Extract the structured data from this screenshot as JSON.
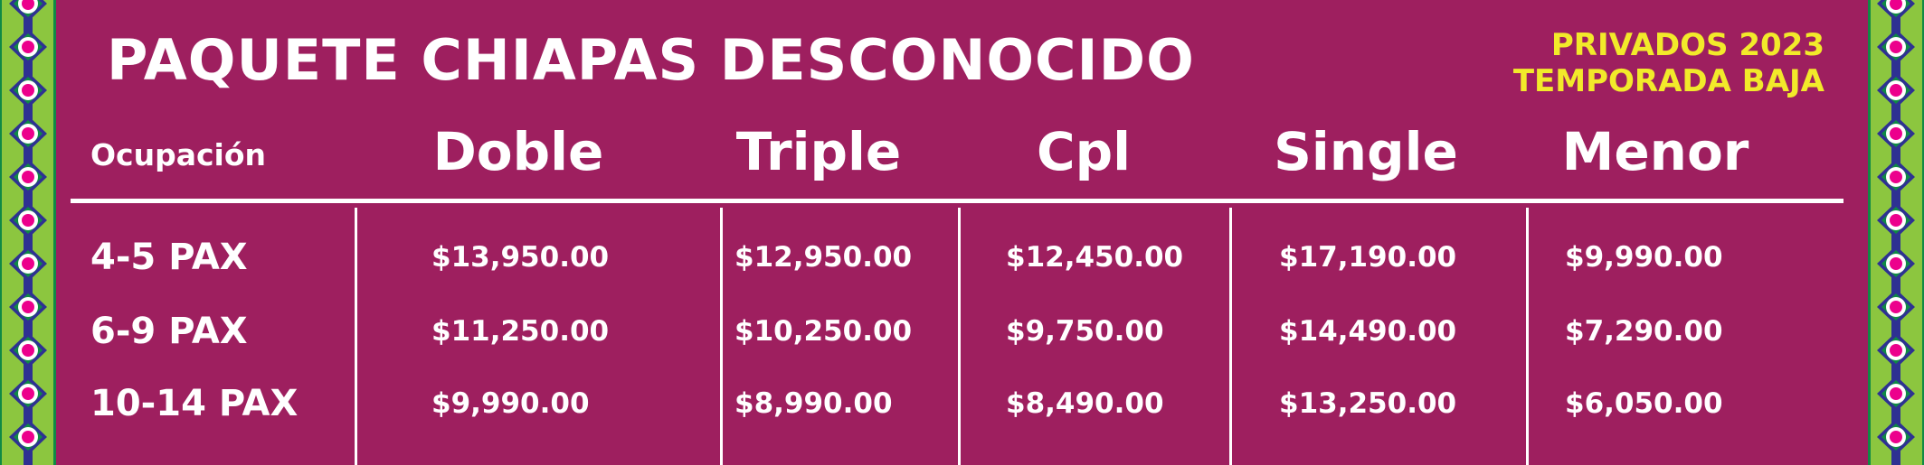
{
  "title": "PAQUETE CHIAPAS DESCONOCIDO",
  "subtitle": {
    "line1": "PRIVADOS 2023",
    "line2": "TEMPORADA BAJA"
  },
  "colors": {
    "background": "#9e1f5f",
    "accent_text": "#f2ea2a",
    "border_green": "#8cc63f",
    "border_blue": "#2e3192",
    "border_dark_green": "#0f8a45",
    "border_pink": "#ec008c"
  },
  "table": {
    "header_label": "Ocupación",
    "columns": [
      "Doble",
      "Triple",
      "Cpl",
      "Single",
      "Menor"
    ],
    "rows": [
      {
        "label": "4-5 PAX",
        "values": [
          "$13,950.00",
          "$12,950.00",
          "$12,450.00",
          "$17,190.00",
          "$9,990.00"
        ]
      },
      {
        "label": "6-9 PAX",
        "values": [
          "$11,250.00",
          "$10,250.00",
          "$9,750.00",
          "$14,490.00",
          "$7,290.00"
        ]
      },
      {
        "label": "10-14 PAX",
        "values": [
          "$9,990.00",
          "$8,990.00",
          "$8,490.00",
          "$13,250.00",
          "$6,050.00"
        ]
      }
    ]
  }
}
